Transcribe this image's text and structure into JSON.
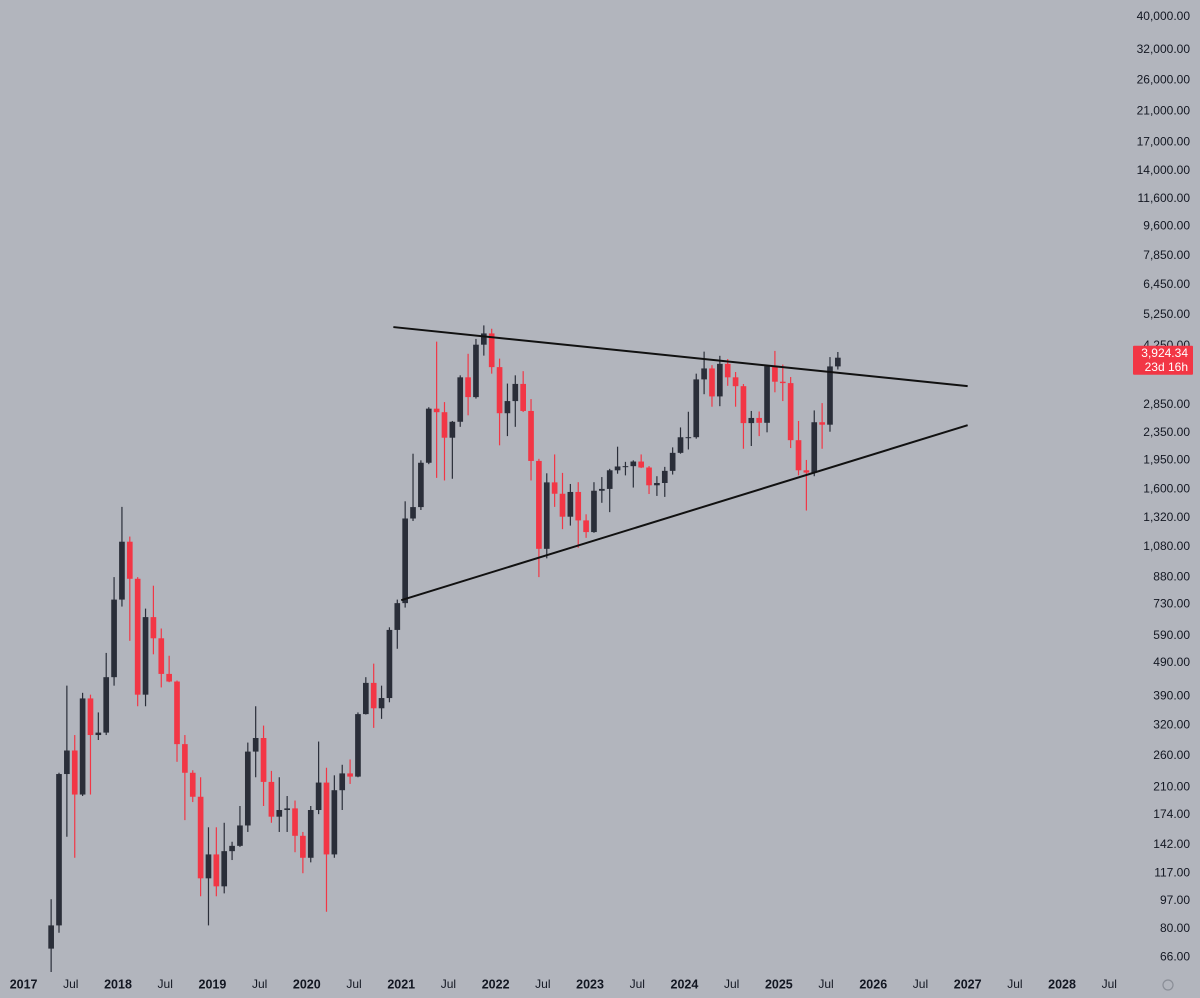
{
  "chart_data": {
    "type": "candlestick",
    "log_scale": true,
    "up_color": "#2a2e39",
    "down_color": "#f23645",
    "line_color": "#111111",
    "ylim": [
      50,
      44900
    ],
    "xlim": [
      "2016-10",
      "2028-09"
    ],
    "yticks": [
      {
        "value": 40000,
        "label": "40,000.00"
      },
      {
        "value": 32000,
        "label": "32,000.00"
      },
      {
        "value": 26000,
        "label": "26,000.00"
      },
      {
        "value": 21000,
        "label": "21,000.00"
      },
      {
        "value": 17000,
        "label": "17,000.00"
      },
      {
        "value": 14000,
        "label": "14,000.00"
      },
      {
        "value": 11600,
        "label": "11,600.00"
      },
      {
        "value": 9600,
        "label": "9,600.00"
      },
      {
        "value": 7850,
        "label": "7,850.00"
      },
      {
        "value": 6450,
        "label": "6,450.00"
      },
      {
        "value": 5250,
        "label": "5,250.00"
      },
      {
        "value": 4250,
        "label": "4,250.00"
      },
      {
        "value": 2850,
        "label": "2,850.00"
      },
      {
        "value": 2350,
        "label": "2,350.00"
      },
      {
        "value": 1950,
        "label": "1,950.00"
      },
      {
        "value": 1600,
        "label": "1,600.00"
      },
      {
        "value": 1320,
        "label": "1,320.00"
      },
      {
        "value": 1080,
        "label": "1,080.00"
      },
      {
        "value": 880,
        "label": "880.00"
      },
      {
        "value": 730,
        "label": "730.00"
      },
      {
        "value": 590,
        "label": "590.00"
      },
      {
        "value": 490,
        "label": "490.00"
      },
      {
        "value": 390,
        "label": "390.00"
      },
      {
        "value": 320,
        "label": "320.00"
      },
      {
        "value": 260,
        "label": "260.00"
      },
      {
        "value": 210,
        "label": "210.00"
      },
      {
        "value": 174,
        "label": "174.00"
      },
      {
        "value": 142,
        "label": "142.00"
      },
      {
        "value": 117,
        "label": "117.00"
      },
      {
        "value": 97,
        "label": "97.00"
      },
      {
        "value": 80,
        "label": "80.00"
      },
      {
        "value": 66,
        "label": "66.00"
      }
    ],
    "xticks": [
      {
        "value": "2017-01",
        "label": "2017"
      },
      {
        "value": "2017-07",
        "label": "Jul"
      },
      {
        "value": "2018-01",
        "label": "2018"
      },
      {
        "value": "2018-07",
        "label": "Jul"
      },
      {
        "value": "2019-01",
        "label": "2019"
      },
      {
        "value": "2019-07",
        "label": "Jul"
      },
      {
        "value": "2020-01",
        "label": "2020"
      },
      {
        "value": "2020-07",
        "label": "Jul"
      },
      {
        "value": "2021-01",
        "label": "2021"
      },
      {
        "value": "2021-07",
        "label": "Jul"
      },
      {
        "value": "2022-01",
        "label": "2022"
      },
      {
        "value": "2022-07",
        "label": "Jul"
      },
      {
        "value": "2023-01",
        "label": "2023"
      },
      {
        "value": "2023-07",
        "label": "Jul"
      },
      {
        "value": "2024-01",
        "label": "2024"
      },
      {
        "value": "2024-07",
        "label": "Jul"
      },
      {
        "value": "2025-01",
        "label": "2025"
      },
      {
        "value": "2025-07",
        "label": "Jul"
      },
      {
        "value": "2026-01",
        "label": "2026"
      },
      {
        "value": "2026-07",
        "label": "Jul"
      },
      {
        "value": "2027-01",
        "label": "2027"
      },
      {
        "value": "2027-07",
        "label": "Jul"
      },
      {
        "value": "2028-01",
        "label": "2028"
      },
      {
        "value": "2028-07",
        "label": "Jul"
      }
    ],
    "x": [
      "2017-04",
      "2017-05",
      "2017-06",
      "2017-07",
      "2017-08",
      "2017-09",
      "2017-10",
      "2017-11",
      "2017-12",
      "2018-01",
      "2018-02",
      "2018-03",
      "2018-04",
      "2018-05",
      "2018-06",
      "2018-07",
      "2018-08",
      "2018-09",
      "2018-10",
      "2018-11",
      "2018-12",
      "2019-01",
      "2019-02",
      "2019-03",
      "2019-04",
      "2019-05",
      "2019-06",
      "2019-07",
      "2019-08",
      "2019-09",
      "2019-10",
      "2019-11",
      "2019-12",
      "2020-01",
      "2020-02",
      "2020-03",
      "2020-04",
      "2020-05",
      "2020-06",
      "2020-07",
      "2020-08",
      "2020-09",
      "2020-10",
      "2020-11",
      "2020-12",
      "2021-01",
      "2021-02",
      "2021-03",
      "2021-04",
      "2021-05",
      "2021-06",
      "2021-07",
      "2021-08",
      "2021-09",
      "2021-10",
      "2021-11",
      "2021-12",
      "2022-01",
      "2022-02",
      "2022-03",
      "2022-04",
      "2022-05",
      "2022-06",
      "2022-07",
      "2022-08",
      "2022-09",
      "2022-10",
      "2022-11",
      "2022-12",
      "2023-01",
      "2023-02",
      "2023-03",
      "2023-04",
      "2023-05",
      "2023-06",
      "2023-07",
      "2023-08",
      "2023-09",
      "2023-10",
      "2023-11",
      "2023-12",
      "2024-01",
      "2024-02",
      "2024-03",
      "2024-04",
      "2024-05",
      "2024-06",
      "2024-07",
      "2024-08",
      "2024-09",
      "2024-10",
      "2024-11",
      "2024-12",
      "2025-01",
      "2025-02",
      "2025-03",
      "2025-04",
      "2025-05",
      "2025-06",
      "2025-07",
      "2025-08"
    ],
    "open": [
      70,
      82,
      230,
      270,
      200,
      385,
      300,
      305,
      445,
      755,
      1120,
      870,
      395,
      670,
      580,
      455,
      432,
      282,
      232,
      197,
      113,
      133,
      107,
      136,
      141,
      162,
      268,
      294,
      218,
      172,
      180,
      182,
      151,
      130,
      180,
      217,
      133,
      206,
      231,
      226,
      346,
      428,
      360,
      386,
      614,
      737,
      1312,
      1418,
      1918,
      2773,
      2707,
      2275,
      2536,
      3433,
      3000,
      4288,
      4630,
      3680,
      2688,
      2920,
      3282,
      2730,
      1942,
      1067,
      1678,
      1553,
      1328,
      1572,
      1295,
      1196,
      1585,
      1605,
      1822,
      1870,
      1874,
      1934,
      1857,
      1645,
      1671,
      1815,
      2052,
      2282,
      2283,
      3385,
      3647,
      3014,
      3763,
      3433,
      3232,
      2513,
      2603,
      2518,
      3705,
      3332,
      3300,
      2237,
      1822,
      1794,
      2528,
      2486,
      3698
    ],
    "high": [
      98,
      232,
      420,
      300,
      400,
      395,
      350,
      525,
      880,
      1420,
      1160,
      880,
      710,
      830,
      620,
      515,
      435,
      300,
      236,
      225,
      160,
      160,
      165,
      145,
      185,
      285,
      365,
      320,
      235,
      225,
      198,
      192,
      155,
      185,
      287,
      240,
      228,
      245,
      254,
      350,
      445,
      488,
      420,
      625,
      755,
      1475,
      2040,
      1950,
      2800,
      4380,
      2900,
      2550,
      3480,
      4030,
      4460,
      4890,
      4780,
      3900,
      3290,
      3480,
      3580,
      2960,
      1970,
      1785,
      2030,
      1790,
      1660,
      1680,
      1350,
      1680,
      1740,
      1840,
      2140,
      1930,
      1950,
      2030,
      1875,
      1750,
      1865,
      2130,
      2440,
      2715,
      3520,
      4090,
      3730,
      3975,
      3890,
      3560,
      3280,
      2730,
      2720,
      3720,
      4110,
      3745,
      3440,
      2550,
      1955,
      2740,
      2880,
      3940,
      4080
    ],
    "low": [
      58,
      78,
      150,
      130,
      198,
      200,
      290,
      300,
      420,
      720,
      570,
      365,
      365,
      520,
      415,
      430,
      250,
      168,
      190,
      100,
      82,
      100,
      102,
      128,
      140,
      155,
      225,
      185,
      165,
      155,
      155,
      135,
      117,
      126,
      175,
      90,
      130,
      180,
      215,
      225,
      345,
      315,
      335,
      375,
      540,
      715,
      1290,
      1390,
      1900,
      1730,
      1700,
      1720,
      2450,
      2650,
      2970,
      3980,
      3520,
      2160,
      2300,
      2450,
      2710,
      1700,
      880,
      1000,
      1420,
      1220,
      1250,
      1075,
      1150,
      1190,
      1460,
      1370,
      1780,
      1760,
      1620,
      1850,
      1550,
      1530,
      1520,
      1770,
      2040,
      2100,
      2260,
      3060,
      2810,
      2820,
      3240,
      2810,
      2110,
      2150,
      2300,
      2360,
      3100,
      2920,
      2120,
      1760,
      1385,
      1750,
      2110,
      2370,
      3620
    ],
    "close": [
      82,
      230,
      270,
      200,
      385,
      300,
      305,
      445,
      755,
      1120,
      870,
      395,
      670,
      580,
      455,
      432,
      282,
      232,
      197,
      113,
      133,
      107,
      136,
      141,
      162,
      268,
      294,
      218,
      172,
      180,
      182,
      151,
      130,
      180,
      217,
      133,
      206,
      231,
      226,
      346,
      428,
      360,
      386,
      614,
      737,
      1312,
      1418,
      1918,
      2773,
      2707,
      2275,
      2536,
      3433,
      3000,
      4288,
      4630,
      3680,
      2688,
      2920,
      3282,
      2730,
      1942,
      1067,
      1678,
      1553,
      1328,
      1572,
      1295,
      1196,
      1585,
      1605,
      1822,
      1870,
      1874,
      1934,
      1857,
      1645,
      1671,
      1815,
      2052,
      2282,
      2283,
      3385,
      3647,
      3014,
      3763,
      3433,
      3232,
      2513,
      2603,
      2518,
      3705,
      3332,
      3300,
      2237,
      1822,
      1794,
      2528,
      2486,
      3698,
      3924.34
    ],
    "trendlines": [
      {
        "x": [
          "2020-12",
          "2027-01"
        ],
        "y": [
          4835,
          3233
        ]
      },
      {
        "x": [
          "2021-01",
          "2027-01"
        ],
        "y": [
          752,
          2478
        ]
      }
    ],
    "last_price": {
      "value": 3924.34,
      "label": "3,924.34"
    },
    "countdown": "23d 16h"
  }
}
